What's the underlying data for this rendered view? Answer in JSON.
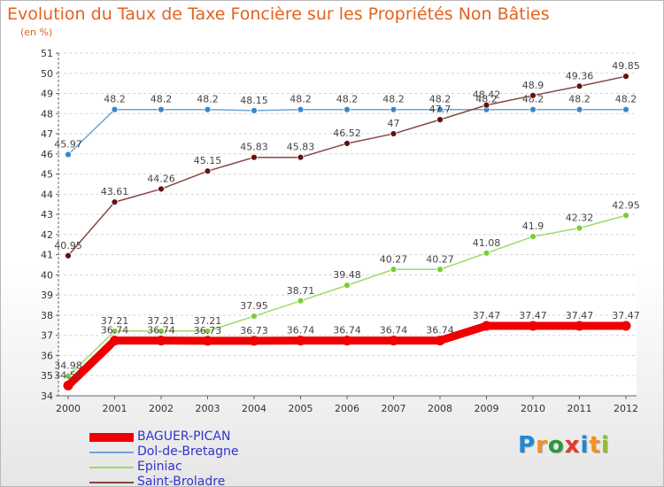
{
  "title": "Evolution du Taux de Taxe Foncière sur les Propriétés Non Bâties",
  "subtitle": "(en %)",
  "logo": {
    "letters": [
      "P",
      "r",
      "o",
      "x",
      "i",
      "t",
      "i"
    ],
    "colors": [
      "#1e88d8",
      "#f29222",
      "#2a9a3a",
      "#e33a2a",
      "#1e88d8",
      "#f29222",
      "#8fbf2a"
    ]
  },
  "chart_data": {
    "type": "line",
    "x": [
      "2000",
      "2001",
      "2002",
      "2003",
      "2004",
      "2005",
      "2006",
      "2007",
      "2008",
      "2009",
      "2010",
      "2011",
      "2012"
    ],
    "ylim": [
      34,
      51
    ],
    "yticks": [
      "34",
      "35",
      "36",
      "37",
      "38",
      "39",
      "40",
      "41",
      "42",
      "43",
      "44",
      "45",
      "46",
      "47",
      "48",
      "49",
      "50",
      "51"
    ],
    "grid": "horizontal dashed",
    "legend_position": "bottom-left",
    "series": [
      {
        "name": "BAGUER-PICAN",
        "color": "#ee0000",
        "values": [
          34.51,
          36.74,
          36.74,
          36.73,
          36.73,
          36.74,
          36.74,
          36.74,
          36.74,
          37.47,
          37.47,
          37.47,
          37.47
        ],
        "labels": [
          "34.51",
          "36.74",
          "36.74",
          "36.73",
          "36.73",
          "36.74",
          "36.74",
          "36.74",
          "36.74",
          "37.47",
          "37.47",
          "37.47",
          "37.47"
        ]
      },
      {
        "name": "Dol-de-Bretagne",
        "color": "#6fa3d6",
        "marker": "#3a86c8",
        "values": [
          45.97,
          48.2,
          48.2,
          48.2,
          48.15,
          48.2,
          48.2,
          48.2,
          48.2,
          48.2,
          48.2,
          48.2,
          48.2
        ],
        "labels": [
          "45.97",
          "48.2",
          "48.2",
          "48.2",
          "48.15",
          "48.2",
          "48.2",
          "48.2",
          "48.2",
          "48.2",
          "48.2",
          "48.2",
          "48.2"
        ]
      },
      {
        "name": "Epiniac",
        "color": "#99dd66",
        "marker": "#7ccd3a",
        "values": [
          34.98,
          37.21,
          37.21,
          37.21,
          37.95,
          38.71,
          39.48,
          40.27,
          40.27,
          41.08,
          41.9,
          42.32,
          42.95
        ],
        "labels": [
          "34.98",
          "37.21",
          "37.21",
          "37.21",
          "37.95",
          "38.71",
          "39.48",
          "40.27",
          "40.27",
          "41.08",
          "41.9",
          "42.32",
          "42.95"
        ]
      },
      {
        "name": "Saint-Broladre",
        "color": "#884444",
        "marker": "#5e1414",
        "values": [
          40.95,
          43.61,
          44.26,
          45.15,
          45.83,
          45.83,
          46.52,
          47,
          47.7,
          48.42,
          48.9,
          49.36,
          49.85
        ],
        "labels": [
          "40.95",
          "43.61",
          "44.26",
          "45.15",
          "45.83",
          "45.83",
          "46.52",
          "47",
          "47.7",
          "48.42",
          "48.9",
          "49.36",
          "49.85"
        ]
      }
    ]
  }
}
